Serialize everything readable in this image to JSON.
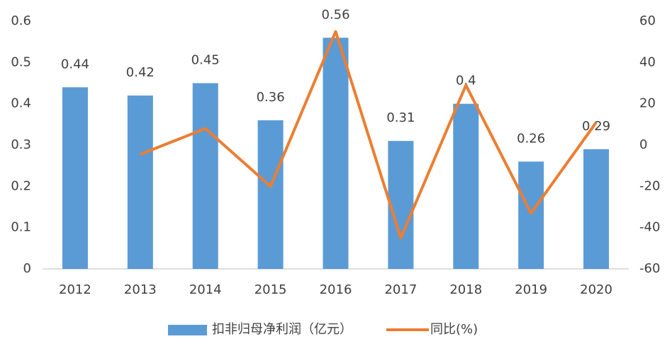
{
  "chart_data": {
    "type": "bar-line",
    "categories": [
      "2012",
      "2013",
      "2014",
      "2015",
      "2016",
      "2017",
      "2018",
      "2019",
      "2020"
    ],
    "series": [
      {
        "name": "扣非归母净利润（亿元）",
        "type": "bar",
        "color": "#5b9bd5",
        "values": [
          0.44,
          0.42,
          0.45,
          0.36,
          0.56,
          0.31,
          0.4,
          0.26,
          0.29
        ]
      },
      {
        "name": "同比(%)",
        "type": "line",
        "axis": "y2",
        "color": "#ed7d31",
        "values": [
          null,
          -4.5,
          8,
          -20,
          55,
          -45,
          29,
          -33,
          11
        ]
      }
    ],
    "ylim": [
      0,
      0.6
    ],
    "yticks": [
      0,
      0.1,
      0.2,
      0.3,
      0.4,
      0.5,
      0.6
    ],
    "y2lim": [
      -60,
      60
    ],
    "y2ticks": [
      -60,
      -40,
      -20,
      0,
      20,
      40,
      60
    ],
    "grid": false,
    "legend": "bottom"
  }
}
